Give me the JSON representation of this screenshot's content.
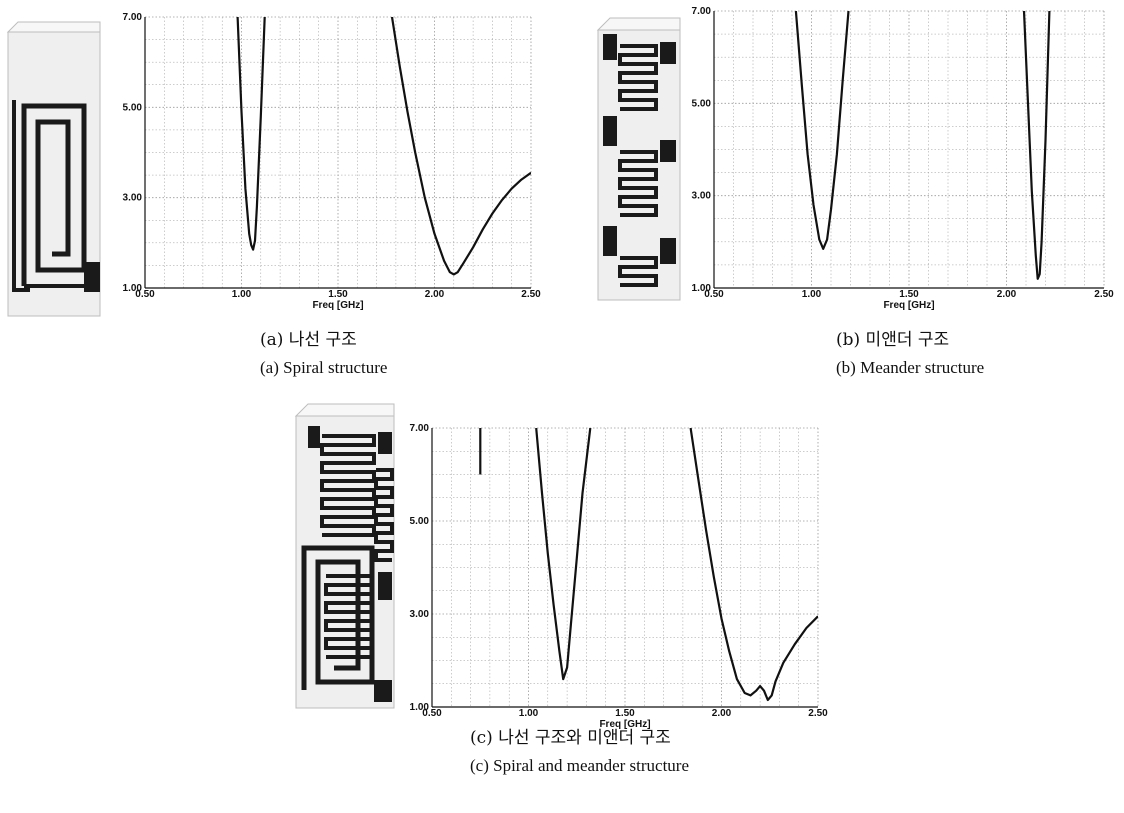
{
  "colors": {
    "curve": "#111111",
    "grid": "#9a9a9a",
    "frame": "#111111",
    "trace": "#1a1a1a",
    "box": "#bdbdbd"
  },
  "panels": [
    {
      "id": "a",
      "caption_ko": "(a) 나선 구조",
      "caption_en": "(a) Spiral structure",
      "antenna": "spiral-structure-drawing"
    },
    {
      "id": "b",
      "caption_ko": "(b) 미앤더 구조",
      "caption_en": "(b) Meander structure",
      "antenna": "meander-structure-drawing"
    },
    {
      "id": "c",
      "caption_ko": "(c) 나선 구조와 미앤더 구조",
      "caption_en": "(c) Spiral and meander structure",
      "antenna": "spiral-and-meander-structure-drawing"
    }
  ],
  "chart_data": [
    {
      "type": "line",
      "xlabel": "Freq [GHz]",
      "xlim": [
        0.5,
        2.5
      ],
      "ylim": [
        1.0,
        7.0
      ],
      "xticks": [
        "0.50",
        "1.00",
        "1.50",
        "2.00",
        "2.50"
      ],
      "yticks": [
        "1.00",
        "3.00",
        "5.00",
        "7.00"
      ],
      "grid": true,
      "series": [
        {
          "x": [
            0.98,
            1.0,
            1.02,
            1.04,
            1.05,
            1.06,
            1.07,
            1.08,
            1.1,
            1.12
          ],
          "y": [
            7.0,
            4.9,
            3.2,
            2.2,
            1.95,
            1.85,
            2.05,
            2.8,
            4.8,
            7.0
          ]
        },
        {
          "x": [
            1.78,
            1.82,
            1.86,
            1.9,
            1.95,
            2.0,
            2.05,
            2.08,
            2.1,
            2.12,
            2.15,
            2.2,
            2.25,
            2.3,
            2.35,
            2.4,
            2.45,
            2.5
          ],
          "y": [
            7.0,
            5.9,
            4.9,
            4.0,
            3.0,
            2.2,
            1.6,
            1.35,
            1.3,
            1.35,
            1.55,
            1.9,
            2.3,
            2.65,
            2.95,
            3.2,
            3.4,
            3.55
          ]
        }
      ]
    },
    {
      "type": "line",
      "xlabel": "Freq [GHz]",
      "xlim": [
        0.5,
        2.5
      ],
      "ylim": [
        1.0,
        7.0
      ],
      "xticks": [
        "0.50",
        "1.00",
        "1.50",
        "2.00",
        "2.50"
      ],
      "yticks": [
        "1.00",
        "3.00",
        "5.00",
        "7.00"
      ],
      "grid": true,
      "series": [
        {
          "x": [
            0.92,
            0.95,
            0.98,
            1.01,
            1.04,
            1.06,
            1.08,
            1.1,
            1.13,
            1.16,
            1.19
          ],
          "y": [
            7.0,
            5.4,
            3.9,
            2.8,
            2.05,
            1.85,
            2.05,
            2.7,
            3.9,
            5.5,
            7.0
          ]
        },
        {
          "x": [
            2.09,
            2.11,
            2.13,
            2.15,
            2.16,
            2.17,
            2.18,
            2.2,
            2.22
          ],
          "y": [
            7.0,
            5.0,
            3.1,
            1.7,
            1.2,
            1.3,
            2.0,
            4.2,
            7.0
          ]
        }
      ]
    },
    {
      "type": "line",
      "xlabel": "Freq [GHz]",
      "xlim": [
        0.5,
        2.5
      ],
      "ylim": [
        1.0,
        7.0
      ],
      "xticks": [
        "0.50",
        "1.00",
        "1.50",
        "2.00",
        "2.50"
      ],
      "yticks": [
        "1.00",
        "3.00",
        "5.00",
        "7.00"
      ],
      "grid": true,
      "series": [
        {
          "x": [
            0.75,
            0.75
          ],
          "y": [
            7.0,
            6.0
          ]
        },
        {
          "x": [
            1.04,
            1.07,
            1.1,
            1.13,
            1.16,
            1.18,
            1.2,
            1.22,
            1.25,
            1.28,
            1.32
          ],
          "y": [
            7.0,
            5.6,
            4.3,
            3.2,
            2.2,
            1.6,
            1.85,
            2.8,
            4.2,
            5.6,
            7.0
          ]
        },
        {
          "x": [
            1.84,
            1.88,
            1.92,
            1.96,
            2.0,
            2.04,
            2.08,
            2.12,
            2.15,
            2.18,
            2.2,
            2.22,
            2.24,
            2.26,
            2.28,
            2.32,
            2.38,
            2.44,
            2.5
          ],
          "y": [
            7.0,
            5.9,
            4.8,
            3.8,
            2.9,
            2.2,
            1.6,
            1.3,
            1.25,
            1.35,
            1.45,
            1.35,
            1.15,
            1.25,
            1.55,
            1.95,
            2.35,
            2.7,
            2.95
          ]
        }
      ]
    }
  ]
}
